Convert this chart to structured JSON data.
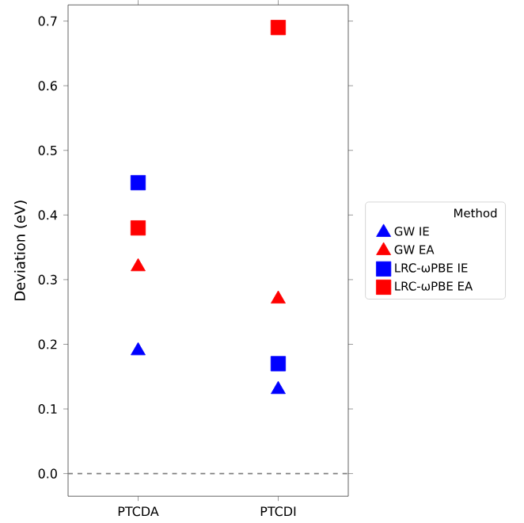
{
  "chart_data": {
    "type": "scatter",
    "ylabel": "Deviation (eV)",
    "legend_title": "Method",
    "legend": "right",
    "categories": [
      "PTCDA",
      "PTCDI"
    ],
    "ylim": [
      -0.035,
      0.725
    ],
    "yticks": [
      {
        "value": 0,
        "label": "0.0"
      },
      0.1,
      0.2,
      0.3,
      0.4,
      0.5,
      0.6,
      0.7
    ],
    "series": [
      {
        "name": "GW IE",
        "color": "#0000ff",
        "marker": "triangle",
        "values": [
          0.19,
          0.13
        ]
      },
      {
        "name": "GW EA",
        "color": "#ff0000",
        "marker": "triangle",
        "values": [
          0.32,
          0.27
        ]
      },
      {
        "name": "LRC-ωPBE IE",
        "color": "#0000ff",
        "marker": "square",
        "values": [
          0.45,
          0.17
        ]
      },
      {
        "name": "LRC-ωPBE EA",
        "color": "#ff0000",
        "marker": "square",
        "values": [
          0.38,
          0.69
        ]
      }
    ],
    "ref_lines": [
      {
        "axis": "y",
        "value": 0,
        "color": "#808080",
        "line_style": "dashed"
      }
    ]
  }
}
